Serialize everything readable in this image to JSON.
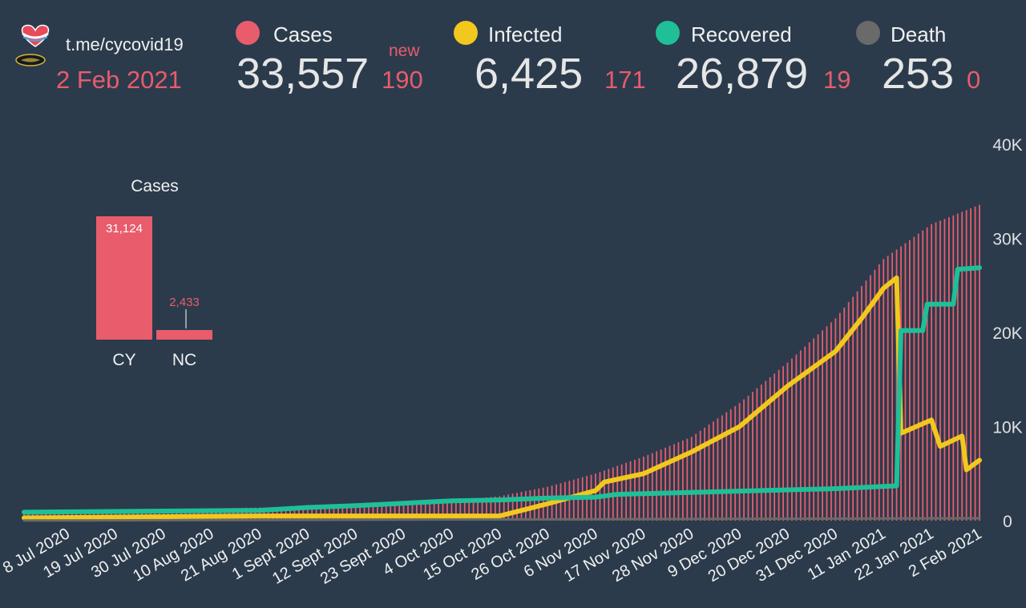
{
  "header": {
    "channel": "t.me/cycovid19",
    "date": "2 Feb 2021",
    "new_label": "new",
    "stats": [
      {
        "key": "cases",
        "label": "Cases",
        "value": "33,557",
        "delta": "190",
        "color": "#e85c6c"
      },
      {
        "key": "infected",
        "label": "Infected",
        "value": "6,425",
        "delta": "171",
        "color": "#f2c81e"
      },
      {
        "key": "recovered",
        "label": "Recovered",
        "value": "26,879",
        "delta": "19",
        "color": "#1fbf98"
      },
      {
        "key": "death",
        "label": "Death",
        "value": "253",
        "delta": "0",
        "color": "#6a6a6a"
      }
    ]
  },
  "inset": {
    "title": "Cases",
    "bars": [
      {
        "category": "CY",
        "value": 31124,
        "label": "31,124"
      },
      {
        "category": "NC",
        "value": 2433,
        "label": "2,433"
      }
    ]
  },
  "chart_data": {
    "type": "bar",
    "x_start": "2020-06-28",
    "x_end": "2021-02-02",
    "y_ticks": [
      "0",
      "10K",
      "20K",
      "30K",
      "40K"
    ],
    "ylim": [
      0,
      40000
    ],
    "x_ticks": [
      {
        "date": "2020-07-08",
        "label": "8 Jul 2020"
      },
      {
        "date": "2020-07-19",
        "label": "19 Jul 2020"
      },
      {
        "date": "2020-07-30",
        "label": "30 Jul 2020"
      },
      {
        "date": "2020-08-10",
        "label": "10 Aug 2020"
      },
      {
        "date": "2020-08-21",
        "label": "21 Aug 2020"
      },
      {
        "date": "2020-09-01",
        "label": "1 Sept 2020"
      },
      {
        "date": "2020-09-12",
        "label": "12 Sept 2020"
      },
      {
        "date": "2020-09-23",
        "label": "23 Sept 2020"
      },
      {
        "date": "2020-10-04",
        "label": "4 Oct 2020"
      },
      {
        "date": "2020-10-15",
        "label": "15 Oct 2020"
      },
      {
        "date": "2020-10-26",
        "label": "26 Oct 2020"
      },
      {
        "date": "2020-11-06",
        "label": "6 Nov 2020"
      },
      {
        "date": "2020-11-17",
        "label": "17 Nov 2020"
      },
      {
        "date": "2020-11-28",
        "label": "28 Nov 2020"
      },
      {
        "date": "2020-12-09",
        "label": "9 Dec 2020"
      },
      {
        "date": "2020-12-20",
        "label": "20 Dec 2020"
      },
      {
        "date": "2020-12-31",
        "label": "31 Dec 2020"
      },
      {
        "date": "2021-01-11",
        "label": "11 Jan 2021"
      },
      {
        "date": "2021-01-22",
        "label": "22 Jan 2021"
      },
      {
        "date": "2021-02-02",
        "label": "2 Feb 2021"
      }
    ],
    "series": [
      {
        "name": "Cases",
        "kind": "bar",
        "color": "#e85c6c",
        "points": [
          [
            "2020-06-28",
            1000
          ],
          [
            "2020-08-10",
            1300
          ],
          [
            "2020-09-01",
            1500
          ],
          [
            "2020-09-23",
            1800
          ],
          [
            "2020-10-04",
            2100
          ],
          [
            "2020-10-15",
            2600
          ],
          [
            "2020-10-26",
            3600
          ],
          [
            "2020-11-06",
            5000
          ],
          [
            "2020-11-17",
            6800
          ],
          [
            "2020-11-28",
            8900
          ],
          [
            "2020-12-09",
            12500
          ],
          [
            "2020-12-20",
            16800
          ],
          [
            "2020-12-31",
            21500
          ],
          [
            "2021-01-11",
            27800
          ],
          [
            "2021-01-22",
            31500
          ],
          [
            "2021-02-02",
            33557
          ]
        ]
      },
      {
        "name": "Infected",
        "kind": "line",
        "color": "#f2c81e",
        "points": [
          [
            "2020-06-28",
            300
          ],
          [
            "2020-08-21",
            500
          ],
          [
            "2020-09-23",
            500
          ],
          [
            "2020-10-15",
            500
          ],
          [
            "2020-10-26",
            1800
          ],
          [
            "2020-11-06",
            3200
          ],
          [
            "2020-11-08",
            4100
          ],
          [
            "2020-11-17",
            5000
          ],
          [
            "2020-11-28",
            7300
          ],
          [
            "2020-12-09",
            10000
          ],
          [
            "2020-12-20",
            14300
          ],
          [
            "2020-12-31",
            18000
          ],
          [
            "2021-01-06",
            21500
          ],
          [
            "2021-01-11",
            24700
          ],
          [
            "2021-01-14",
            25800
          ],
          [
            "2021-01-15",
            9300
          ],
          [
            "2021-01-22",
            10700
          ],
          [
            "2021-01-24",
            7900
          ],
          [
            "2021-01-29",
            9000
          ],
          [
            "2021-01-30",
            5400
          ],
          [
            "2021-02-02",
            6425
          ]
        ]
      },
      {
        "name": "Recovered",
        "kind": "step",
        "color": "#1fbf98",
        "points": [
          [
            "2020-06-28",
            900
          ],
          [
            "2020-08-21",
            1100
          ],
          [
            "2020-09-01",
            1400
          ],
          [
            "2020-09-12",
            1600
          ],
          [
            "2020-10-04",
            2100
          ],
          [
            "2020-10-15",
            2200
          ],
          [
            "2020-10-26",
            2400
          ],
          [
            "2020-11-06",
            2500
          ],
          [
            "2020-11-11",
            2800
          ],
          [
            "2020-12-31",
            3400
          ],
          [
            "2021-01-14",
            3700
          ],
          [
            "2021-01-15",
            20200
          ],
          [
            "2021-01-20",
            20200
          ],
          [
            "2021-01-21",
            23000
          ],
          [
            "2021-01-27",
            23000
          ],
          [
            "2021-01-28",
            26700
          ],
          [
            "2021-02-02",
            26879
          ]
        ]
      },
      {
        "name": "Death",
        "kind": "line",
        "color": "#6a6a6a",
        "points": [
          [
            "2020-06-28",
            20
          ],
          [
            "2021-02-02",
            253
          ]
        ]
      }
    ]
  }
}
